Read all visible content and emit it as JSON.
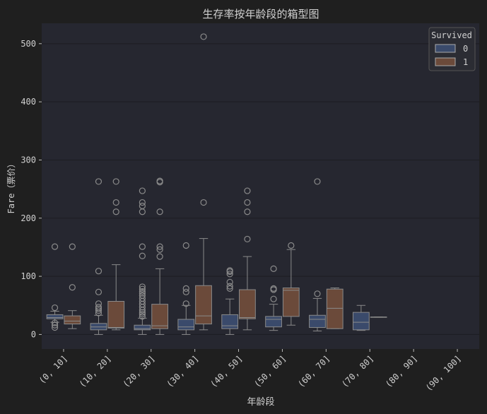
{
  "chart_data": {
    "type": "box",
    "title": "生存率按年龄段的箱型图",
    "xlabel": "年龄段",
    "ylabel": "Fare（票价）",
    "ylim": [
      -25,
      535
    ],
    "yticks": [
      0,
      100,
      200,
      300,
      400,
      500
    ],
    "grid": true,
    "legend": {
      "title": "Survived",
      "placement": "top-right"
    },
    "categories": [
      "(0, 10]",
      "(10, 20]",
      "(20, 30]",
      "(30, 40]",
      "(40, 50]",
      "(50, 60]",
      "(60, 70]",
      "(70, 80]",
      "(80, 90]",
      "(90, 100]"
    ],
    "series": [
      {
        "name": "0",
        "color": "#3a4a6b",
        "boxes": [
          {
            "cat": 0,
            "wlo": 21,
            "q1": 27,
            "med": 29,
            "q3": 34,
            "whi": 40,
            "fliers": [
              12,
              16,
              20,
              46,
              151
            ]
          },
          {
            "cat": 1,
            "wlo": 0,
            "q1": 8,
            "med": 13,
            "q3": 19,
            "whi": 33,
            "fliers": [
              37,
              41,
              44,
              47,
              53,
              73,
              109,
              263
            ]
          },
          {
            "cat": 2,
            "wlo": 0,
            "q1": 8,
            "med": 10,
            "q3": 16,
            "whi": 28,
            "fliers": [
              31,
              35,
              38,
              42,
              47,
              52,
              57,
              62,
              67,
              71,
              74,
              78,
              82,
              135,
              151,
              211,
              221,
              227,
              247
            ]
          },
          {
            "cat": 3,
            "wlo": 0,
            "q1": 8,
            "med": 13,
            "q3": 26,
            "whi": 50,
            "fliers": [
              53,
              73,
              79,
              153
            ]
          },
          {
            "cat": 4,
            "wlo": 0,
            "q1": 10,
            "med": 15,
            "q3": 34,
            "whi": 61,
            "fliers": [
              79,
              83,
              90,
              104,
              108,
              110
            ]
          },
          {
            "cat": 5,
            "wlo": 7,
            "q1": 13,
            "med": 26,
            "q3": 31,
            "whi": 52,
            "fliers": [
              61,
              77,
              79,
              113
            ]
          },
          {
            "cat": 6,
            "wlo": 6,
            "q1": 12,
            "med": 26,
            "q3": 33,
            "whi": 62,
            "fliers": [
              70,
              263
            ]
          },
          {
            "cat": 7,
            "wlo": 7,
            "q1": 8,
            "med": 21,
            "q3": 38,
            "whi": 50,
            "fliers": []
          }
        ]
      },
      {
        "name": "1",
        "color": "#6b4a3a",
        "boxes": [
          {
            "cat": 0,
            "wlo": 10,
            "q1": 18,
            "med": 23,
            "q3": 32,
            "whi": 41,
            "fliers": [
              81,
              151
            ]
          },
          {
            "cat": 1,
            "wlo": 8,
            "q1": 11,
            "med": 12,
            "q3": 57,
            "whi": 120,
            "fliers": [
              211,
              227,
              263
            ]
          },
          {
            "cat": 2,
            "wlo": 0,
            "q1": 10,
            "med": 15,
            "q3": 52,
            "whi": 113,
            "fliers": [
              134,
              146,
              151,
              211,
              262,
              264
            ]
          },
          {
            "cat": 3,
            "wlo": 8,
            "q1": 18,
            "med": 32,
            "q3": 84,
            "whi": 165,
            "fliers": [
              227,
              512
            ]
          },
          {
            "cat": 4,
            "wlo": 8,
            "q1": 27,
            "med": 29,
            "q3": 77,
            "whi": 134,
            "fliers": [
              164,
              211,
              227,
              247
            ]
          },
          {
            "cat": 5,
            "wlo": 16,
            "q1": 31,
            "med": 76,
            "q3": 80,
            "whi": 146,
            "fliers": [
              153
            ]
          },
          {
            "cat": 6,
            "wlo": 10,
            "q1": 10,
            "med": 45,
            "q3": 78,
            "whi": 80,
            "fliers": []
          },
          {
            "cat": 7,
            "wlo": 30,
            "q1": 30,
            "med": 30,
            "q3": 30,
            "whi": 30,
            "fliers": []
          }
        ]
      }
    ]
  }
}
